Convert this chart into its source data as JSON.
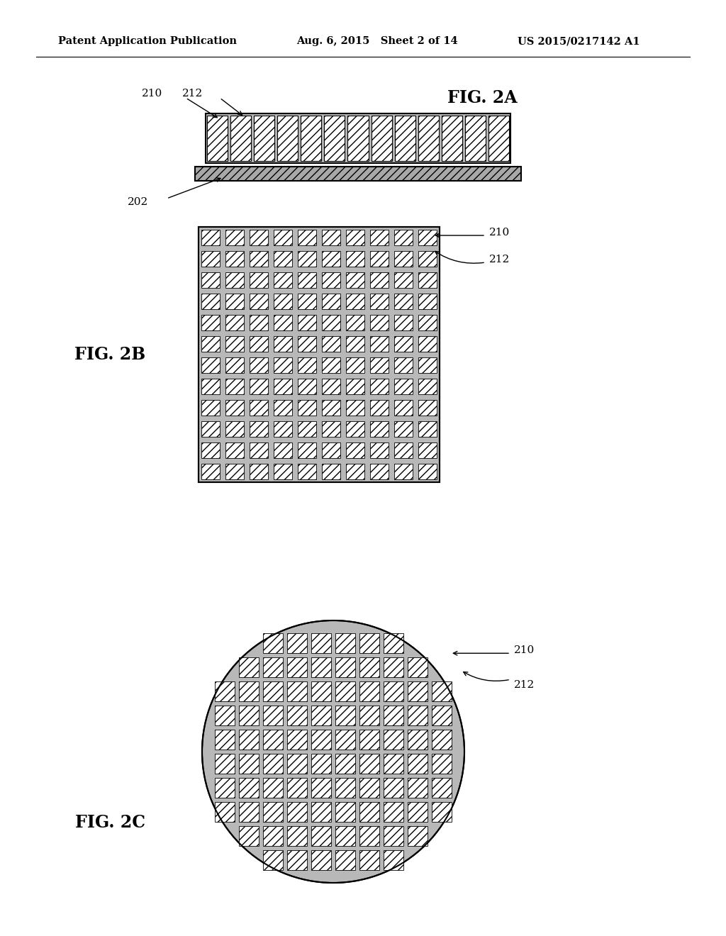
{
  "bg_color": "#ffffff",
  "header_left": "Patent Application Publication",
  "header_center": "Aug. 6, 2015   Sheet 2 of 14",
  "header_right": "US 2015/0217142 A1",
  "fig2a_label": "FIG. 2A",
  "fig2b_label": "FIG. 2B",
  "fig2c_label": "FIG. 2C",
  "label_210a": "210",
  "label_212a": "212",
  "label_202": "202",
  "label_210b": "210",
  "label_212b": "212",
  "label_210c": "210",
  "label_212c": "212",
  "grid_bg": "#b8b8b8",
  "base_color": "#a8a8a8",
  "cell_face": "#e8e8e8"
}
